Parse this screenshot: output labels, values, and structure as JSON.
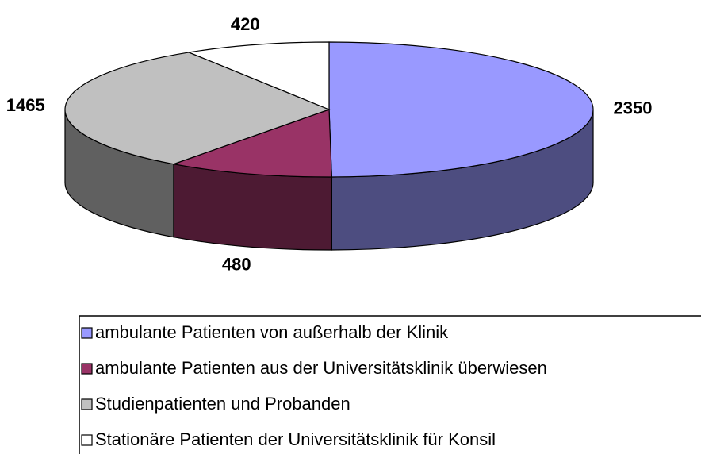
{
  "chart_data": {
    "type": "pie",
    "categories": [
      "ambulante Patienten von außerhalb der Klinik",
      "ambulante Patienten aus der Universitätsklinik überwiesen",
      "Studienpatienten und Probanden",
      "Stationäre Patienten der Universitätsklinik für Konsil"
    ],
    "values": [
      2350,
      480,
      1465,
      420
    ],
    "colors": [
      "#9999ff",
      "#993366",
      "#c0c0c0",
      "#ffffff"
    ]
  }
}
